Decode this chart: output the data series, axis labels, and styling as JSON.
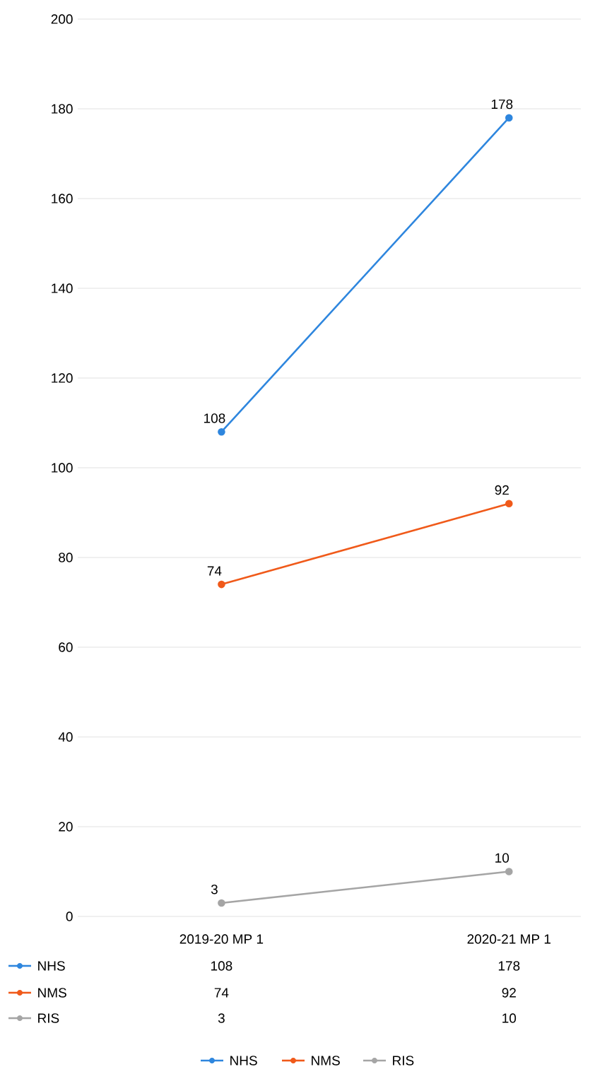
{
  "chart_data": {
    "type": "line",
    "categories": [
      "2019-20 MP 1",
      "2020-21 MP 1"
    ],
    "series": [
      {
        "name": "NHS",
        "color": "#2e86de",
        "values": [
          108,
          178
        ],
        "value_labels": [
          "108",
          "178"
        ]
      },
      {
        "name": "NMS",
        "color": "#f05a1a",
        "values": [
          74,
          92
        ],
        "value_labels": [
          "74",
          "92"
        ]
      },
      {
        "name": "RIS",
        "color": "#a5a5a5",
        "values": [
          3,
          10
        ],
        "value_labels": [
          "3",
          "10"
        ]
      }
    ],
    "annotations": [
      {
        "text": "108",
        "x": "2019-20 MP 1",
        "y": 108
      },
      {
        "text": "178",
        "x": "2020-21 MP 1",
        "y": 178
      },
      {
        "text": "74",
        "x": "2019-20 MP 1",
        "y": 74
      },
      {
        "text": "92",
        "x": "2020-21 MP 1",
        "y": 92
      },
      {
        "text": "3",
        "x": "2019-20 MP 1",
        "y": 3
      },
      {
        "text": "10",
        "x": "2020-21 MP 1",
        "y": 10
      }
    ],
    "ylim": [
      0,
      200
    ],
    "yticks": [
      0,
      20,
      40,
      60,
      80,
      100,
      120,
      140,
      160,
      180,
      200
    ],
    "grid": "y",
    "legend": "bottom",
    "marker": "circle",
    "line_style": "solid"
  }
}
